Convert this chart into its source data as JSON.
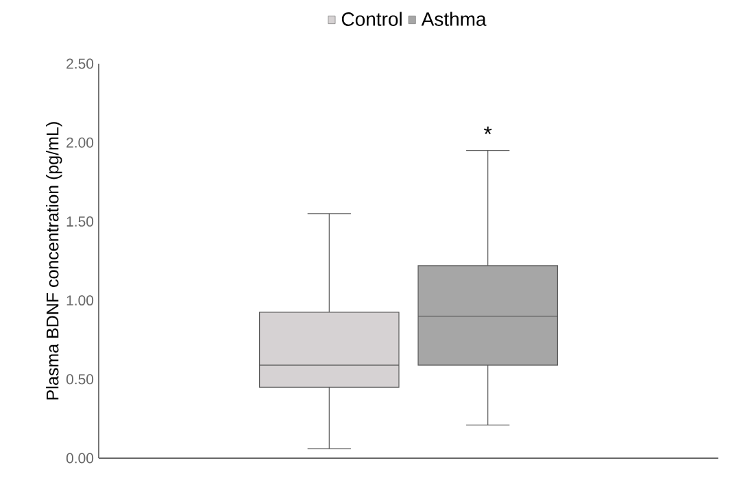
{
  "chart_data": {
    "type": "box",
    "ylabel": "Plasma BDNF concentration (pg/mL)",
    "categories": [
      null
    ],
    "series": [
      {
        "name": "Control",
        "color": "#d6d2d3",
        "boxes": [
          {
            "low": 0.06,
            "q1": 0.45,
            "median": 0.59,
            "q3": 0.925,
            "high": 1.55
          }
        ]
      },
      {
        "name": "Asthma",
        "color": "#a6a6a6",
        "boxes": [
          {
            "low": 0.21,
            "q1": 0.59,
            "median": 0.9,
            "q3": 1.22,
            "high": 1.95
          }
        ]
      }
    ],
    "ylim": [
      0,
      2.5
    ],
    "yticks": [
      {
        "value": 0,
        "label": "0.00"
      },
      {
        "value": 0.5,
        "label": "0.50"
      },
      {
        "value": 1,
        "label": "1.00"
      },
      {
        "value": 1.5,
        "label": "1.50"
      },
      {
        "value": 2,
        "label": "2.00"
      },
      {
        "value": 2.5,
        "label": "2.50"
      }
    ],
    "tick_labels": "y",
    "legend": "top",
    "annotations": [
      "*"
    ]
  }
}
